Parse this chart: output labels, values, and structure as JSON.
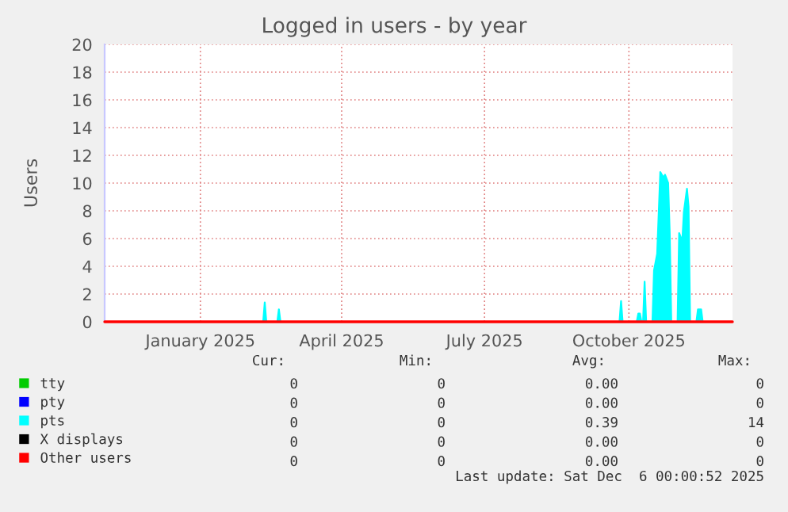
{
  "chart_data": {
    "type": "area",
    "title": "Logged in users - by year",
    "ylabel": "Users",
    "xlim": [
      "2024-11-01",
      "2025-12-06"
    ],
    "ylim": [
      0,
      20
    ],
    "yticks": [
      0,
      2,
      4,
      6,
      8,
      10,
      12,
      14,
      16,
      18,
      20
    ],
    "xticks": [
      {
        "value": "2025-01-01",
        "label": "January 2025"
      },
      {
        "value": "2025-04-01",
        "label": "April 2025"
      },
      {
        "value": "2025-07-01",
        "label": "July 2025"
      },
      {
        "value": "2025-10-01",
        "label": "October 2025"
      }
    ],
    "grid": true,
    "legend": "bottom left",
    "series": [
      {
        "name": "tty",
        "type": "line",
        "color": "#00cc00"
      },
      {
        "name": "pty",
        "type": "line",
        "color": "#0000ff"
      },
      {
        "name": "pts",
        "color": "#00ffff",
        "x": [
          "2024-11-01",
          "2025-02-10",
          "2025-02-11",
          "2025-02-12",
          "2025-02-19",
          "2025-02-20",
          "2025-02-21",
          "2025-09-25",
          "2025-09-26",
          "2025-09-27",
          "2025-10-06",
          "2025-10-07",
          "2025-10-08",
          "2025-10-09",
          "2025-10-10",
          "2025-10-11",
          "2025-10-12",
          "2025-10-16",
          "2025-10-17",
          "2025-10-19",
          "2025-10-21",
          "2025-10-23",
          "2025-10-24",
          "2025-10-26",
          "2025-10-27",
          "2025-10-28",
          "2025-11-01",
          "2025-11-02",
          "2025-11-04",
          "2025-11-05",
          "2025-11-07",
          "2025-11-08",
          "2025-11-09",
          "2025-11-13",
          "2025-11-14",
          "2025-11-16",
          "2025-11-17",
          "2025-12-06"
        ],
        "values": [
          0,
          0,
          1.4,
          0,
          0,
          0.9,
          0,
          0,
          1.5,
          0,
          0,
          0.6,
          0.6,
          0,
          0,
          2.9,
          0,
          0,
          3.7,
          4.9,
          10.8,
          10.4,
          10.6,
          10,
          6.4,
          0,
          0,
          6.4,
          5.8,
          7.9,
          9.6,
          8.3,
          0,
          0,
          0.9,
          0.9,
          0,
          0
        ]
      },
      {
        "name": "X displays",
        "type": "line",
        "color": "#000000"
      },
      {
        "name": "Other users",
        "type": "line",
        "color": "#ff0000",
        "x": [
          "2024-11-01",
          "2025-12-06"
        ],
        "values": [
          0,
          0
        ]
      }
    ],
    "annotations": [
      "Cur:",
      "Min:",
      "Avg:",
      "Max:",
      "0",
      "0",
      "0.00",
      "0",
      "0",
      "0",
      "0.00",
      "0",
      "0",
      "0",
      "0.39",
      "14",
      "0",
      "0",
      "0.00",
      "0",
      "0",
      "0",
      "0.00",
      "0",
      "Last update: Sat Dec  6 00:00:52 2025"
    ]
  }
}
